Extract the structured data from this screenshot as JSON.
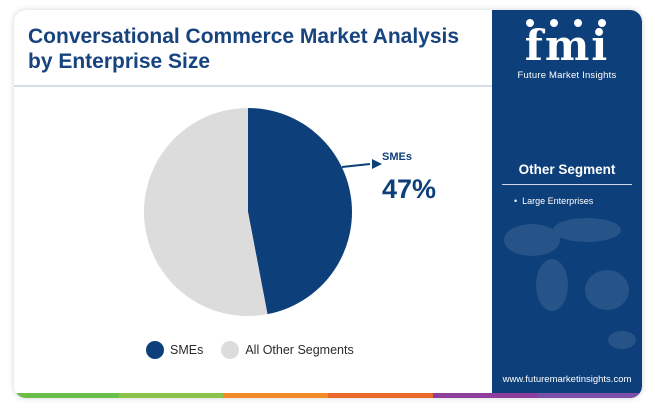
{
  "title": "Conversational Commerce Market Analysis by Enterprise Size",
  "brand": {
    "logo_letters": "fmi",
    "logo_name": "Future Market Insights",
    "website": "www.futuremarketinsights.com",
    "panel_color": "#0d3f7a"
  },
  "sidebar": {
    "segment_title": "Other Segment",
    "items": [
      "Large Enterprises"
    ]
  },
  "chart_data": {
    "type": "pie",
    "slices": [
      {
        "label": "SMEs",
        "value": 47,
        "color": "#0d3f7a"
      },
      {
        "label": "All Other Segments",
        "value": 53,
        "color": "#dcdcdc"
      }
    ],
    "callout": {
      "label": "SMEs",
      "value_text": "47%"
    },
    "legend": [
      "SMEs",
      "All Other Segments"
    ],
    "legend_position": "bottom"
  },
  "footer_colors": [
    "#6abf4b",
    "#8bc34a",
    "#f28c28",
    "#e96a2c",
    "#8e3f9e",
    "#7b4fa8"
  ]
}
